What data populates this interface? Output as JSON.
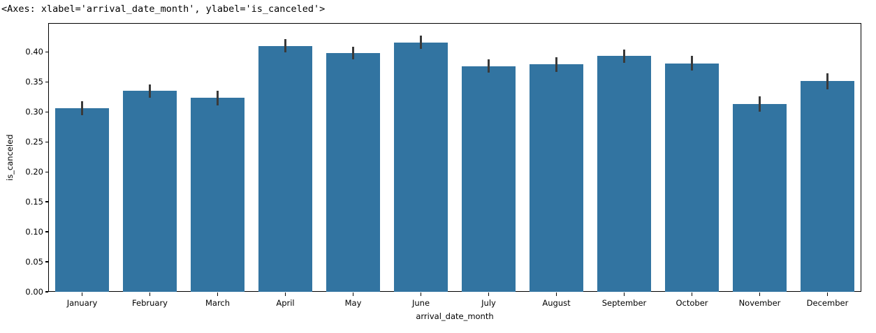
{
  "figure_repr": "<Axes: xlabel='arrival_date_month', ylabel='is_canceled'>",
  "chart_data": {
    "type": "bar",
    "title": "",
    "xlabel": "arrival_date_month",
    "ylabel": "is_canceled",
    "categories": [
      "January",
      "February",
      "March",
      "April",
      "May",
      "June",
      "July",
      "August",
      "September",
      "October",
      "November",
      "December"
    ],
    "values": [
      0.306,
      0.335,
      0.323,
      0.41,
      0.398,
      0.416,
      0.376,
      0.379,
      0.393,
      0.381,
      0.313,
      0.351
    ],
    "errors": [
      0.012,
      0.011,
      0.012,
      0.011,
      0.011,
      0.011,
      0.011,
      0.012,
      0.011,
      0.012,
      0.013,
      0.013
    ],
    "ylim": [
      0,
      0.448
    ],
    "yticks": [
      0,
      0.05,
      0.1,
      0.15,
      0.2,
      0.25,
      0.3,
      0.35,
      0.4
    ],
    "grid": false,
    "legend": null,
    "bar_color": "#3274a1",
    "error_color": "#3a3a3a",
    "bar_width_fraction": 0.8
  }
}
